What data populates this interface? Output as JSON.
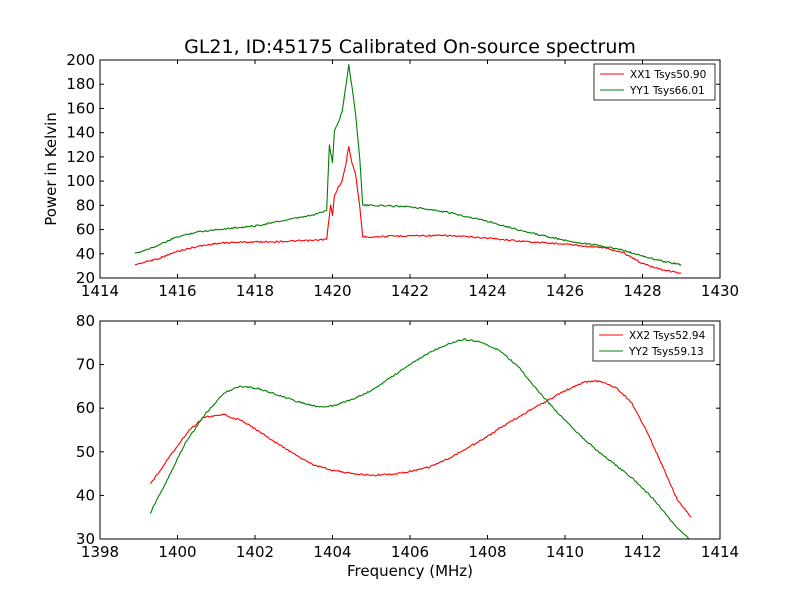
{
  "chart_data": [
    {
      "type": "line",
      "title": "GL21, ID:45175 Calibrated On-source spectrum",
      "xlabel": "",
      "ylabel": "Power in Kelvin",
      "xlim": [
        1414,
        1430
      ],
      "ylim": [
        20,
        200
      ],
      "xticks": [
        "1414",
        "1416",
        "1418",
        "1420",
        "1422",
        "1424",
        "1426",
        "1428",
        "1430"
      ],
      "yticks": [
        "20",
        "40",
        "60",
        "80",
        "100",
        "120",
        "140",
        "160",
        "180",
        "200"
      ],
      "legend": "top-right",
      "series": [
        {
          "name": "XX1 Tsys50.90",
          "color": "#ff0000",
          "points": [
            [
              1414.9,
              31
            ],
            [
              1415.5,
              36
            ],
            [
              1416,
              42
            ],
            [
              1416.5,
              46
            ],
            [
              1417,
              48.5
            ],
            [
              1417.5,
              49.5
            ],
            [
              1418,
              49.8
            ],
            [
              1418.5,
              50
            ],
            [
              1419,
              50.5
            ],
            [
              1419.5,
              51
            ],
            [
              1419.85,
              52
            ],
            [
              1419.95,
              80
            ],
            [
              1420.0,
              72
            ],
            [
              1420.05,
              88
            ],
            [
              1420.15,
              95
            ],
            [
              1420.25,
              100
            ],
            [
              1420.35,
              115
            ],
            [
              1420.42,
              129
            ],
            [
              1420.5,
              115
            ],
            [
              1420.6,
              105
            ],
            [
              1420.7,
              80
            ],
            [
              1420.78,
              54
            ],
            [
              1421,
              54
            ],
            [
              1422,
              55
            ],
            [
              1423,
              55
            ],
            [
              1424,
              53
            ],
            [
              1425,
              50
            ],
            [
              1426,
              48
            ],
            [
              1427,
              45
            ],
            [
              1427.5,
              41
            ],
            [
              1428,
              32
            ],
            [
              1428.5,
              27
            ],
            [
              1429,
              24
            ]
          ]
        },
        {
          "name": "YY1 Tsys66.01",
          "color": "#008000",
          "points": [
            [
              1414.9,
              40
            ],
            [
              1415.5,
              47
            ],
            [
              1416,
              54
            ],
            [
              1416.5,
              58
            ],
            [
              1417,
              60
            ],
            [
              1417.5,
              61.5
            ],
            [
              1418,
              63
            ],
            [
              1418.5,
              66
            ],
            [
              1419,
              69
            ],
            [
              1419.5,
              72
            ],
            [
              1419.85,
              76
            ],
            [
              1419.92,
              130
            ],
            [
              1420.0,
              115
            ],
            [
              1420.05,
              142
            ],
            [
              1420.15,
              148
            ],
            [
              1420.25,
              158
            ],
            [
              1420.35,
              180
            ],
            [
              1420.42,
              196
            ],
            [
              1420.5,
              178
            ],
            [
              1420.6,
              155
            ],
            [
              1420.7,
              120
            ],
            [
              1420.78,
              80
            ],
            [
              1421,
              80
            ],
            [
              1422,
              79
            ],
            [
              1423,
              74
            ],
            [
              1424,
              67
            ],
            [
              1425,
              58
            ],
            [
              1426,
              51
            ],
            [
              1427,
              46
            ],
            [
              1427.5,
              43
            ],
            [
              1428,
              38
            ],
            [
              1428.5,
              34
            ],
            [
              1429,
              31
            ]
          ]
        }
      ]
    },
    {
      "type": "line",
      "title": "",
      "xlabel": "Frequency (MHz)",
      "ylabel": "",
      "xlim": [
        1398,
        1414
      ],
      "ylim": [
        30,
        80
      ],
      "xticks": [
        "1398",
        "1400",
        "1402",
        "1404",
        "1406",
        "1408",
        "1410",
        "1412",
        "1414"
      ],
      "yticks": [
        "30",
        "40",
        "50",
        "60",
        "70",
        "80"
      ],
      "legend": "top-right",
      "series": [
        {
          "name": "XX2 Tsys52.94",
          "color": "#ff0000",
          "points": [
            [
              1399.3,
              42.5
            ],
            [
              1399.8,
              49
            ],
            [
              1400.3,
              55
            ],
            [
              1400.7,
              58
            ],
            [
              1401.2,
              58.5
            ],
            [
              1401.7,
              57
            ],
            [
              1402.3,
              53.5
            ],
            [
              1403,
              49.5
            ],
            [
              1403.5,
              47
            ],
            [
              1404,
              45.8
            ],
            [
              1404.5,
              45
            ],
            [
              1405,
              44.6
            ],
            [
              1405.5,
              44.8
            ],
            [
              1406,
              45.5
            ],
            [
              1406.5,
              46.5
            ],
            [
              1407,
              48.5
            ],
            [
              1407.5,
              51
            ],
            [
              1408,
              53.5
            ],
            [
              1408.5,
              56.5
            ],
            [
              1409,
              59
            ],
            [
              1409.5,
              61.5
            ],
            [
              1410,
              64
            ],
            [
              1410.5,
              66
            ],
            [
              1410.9,
              66.2
            ],
            [
              1411.3,
              64.8
            ],
            [
              1411.7,
              61.5
            ],
            [
              1412.1,
              55
            ],
            [
              1412.5,
              47
            ],
            [
              1412.9,
              39
            ],
            [
              1413.25,
              35
            ]
          ]
        },
        {
          "name": "YY2 Tsys59.13",
          "color": "#008000",
          "points": [
            [
              1399.3,
              36
            ],
            [
              1399.7,
              43
            ],
            [
              1400.2,
              52
            ],
            [
              1400.7,
              58.5
            ],
            [
              1401.2,
              63.5
            ],
            [
              1401.6,
              65
            ],
            [
              1402.1,
              64.5
            ],
            [
              1402.6,
              63
            ],
            [
              1403.1,
              61.5
            ],
            [
              1403.6,
              60.3
            ],
            [
              1404,
              60.5
            ],
            [
              1404.5,
              62
            ],
            [
              1405,
              64
            ],
            [
              1405.5,
              67
            ],
            [
              1406,
              70
            ],
            [
              1406.5,
              72.8
            ],
            [
              1407,
              74.8
            ],
            [
              1407.4,
              75.8
            ],
            [
              1407.8,
              75.2
            ],
            [
              1408.3,
              73.3
            ],
            [
              1408.8,
              69.5
            ],
            [
              1409.3,
              64
            ],
            [
              1409.8,
              59
            ],
            [
              1410.3,
              54.5
            ],
            [
              1410.8,
              50.5
            ],
            [
              1411.3,
              47
            ],
            [
              1411.8,
              43.5
            ],
            [
              1412.3,
              39
            ],
            [
              1412.8,
              33.5
            ],
            [
              1413.2,
              30
            ]
          ]
        }
      ]
    }
  ]
}
